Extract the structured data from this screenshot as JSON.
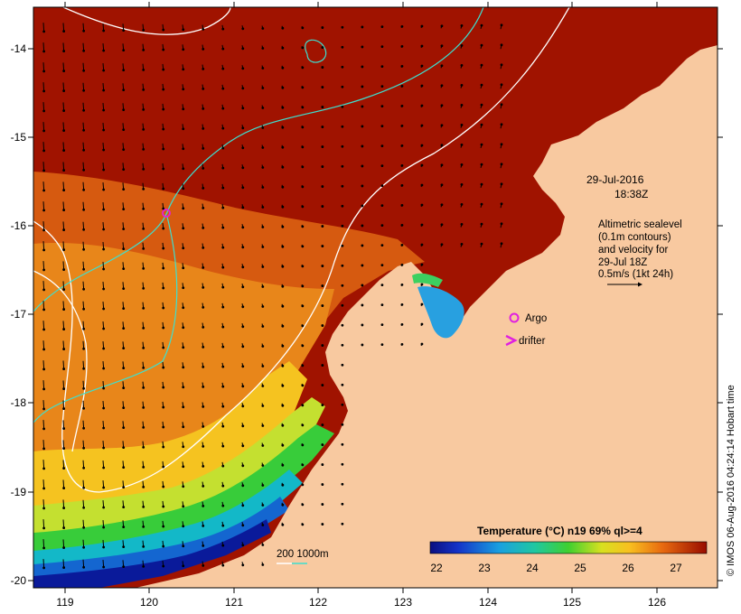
{
  "date_label": "29-Jul-2016",
  "time_label": "18:38Z",
  "legend_text": {
    "line1": "Altimetric sealevel",
    "line2": "(0.1m contours)",
    "line3": "and velocity for",
    "line4": "29-Jul 18Z",
    "line5": "0.5m/s (1kt 24h)"
  },
  "argo_label": "Argo",
  "drifter_label": "drifter",
  "bathy_label": "200  1000m",
  "credit": "© IMOS 06-Aug-2016 04:24:14 Hobart time",
  "colorbar": {
    "title": "Temperature (°C) n19 69% ql>=4",
    "ticks": [
      "22",
      "23",
      "24",
      "25",
      "26",
      "27"
    ]
  },
  "x_ticks": [
    "119",
    "120",
    "121",
    "122",
    "123",
    "124",
    "125",
    "126"
  ],
  "y_ticks": [
    "-14",
    "-15",
    "-16",
    "-17",
    "-18",
    "-19",
    "-20"
  ],
  "colors": {
    "land": "#f8c9a0",
    "sea_hot": "#a01300",
    "sea_mid": "#e0700c",
    "sea_warm": "#f5c320",
    "sea_yellowgreen": "#c4e030",
    "sea_green": "#38cc3a",
    "sea_cyan": "#13b8c8",
    "sea_blue": "#1466d0",
    "sea_navy": "#0a1a9a",
    "contour_white": "#ffffff",
    "contour_cyan": "#3ce0d0",
    "argo": "#e020e0",
    "drifter": "#e020e0"
  }
}
